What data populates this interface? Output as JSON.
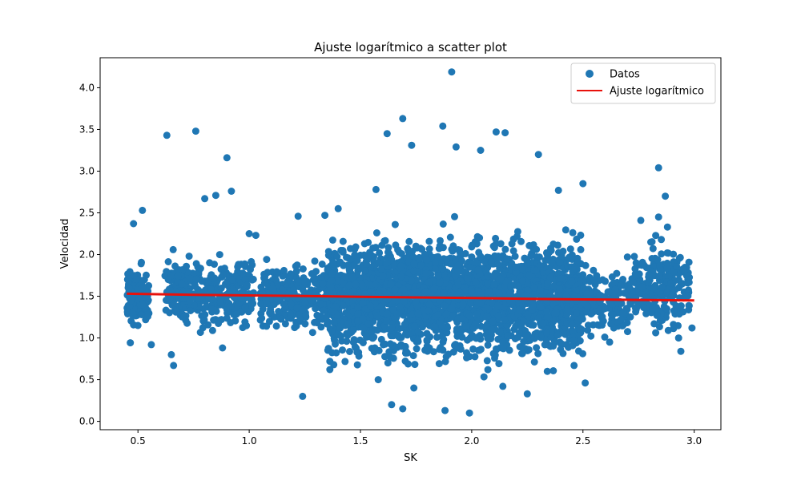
{
  "chart_data": {
    "type": "scatter",
    "title": "Ajuste logarítmico a scatter plot",
    "xlabel": "SK",
    "ylabel": "Velocidad",
    "xlim": [
      0.33,
      3.12
    ],
    "ylim": [
      -0.1,
      4.36
    ],
    "xticks": [
      0.5,
      1.0,
      1.5,
      2.0,
      2.5,
      3.0
    ],
    "xtick_labels": [
      "0.5",
      "1.0",
      "1.5",
      "2.0",
      "2.5",
      "3.0"
    ],
    "yticks": [
      0.0,
      0.5,
      1.0,
      1.5,
      2.0,
      2.5,
      3.0,
      3.5,
      4.0
    ],
    "ytick_labels": [
      "0.0",
      "0.5",
      "1.0",
      "1.5",
      "2.0",
      "2.5",
      "3.0",
      "3.5",
      "4.0"
    ],
    "grid": false,
    "legend": {
      "placement": "top-right",
      "entries": [
        {
          "label": "Datos",
          "type": "marker"
        },
        {
          "label": "Ajuste logarítmico",
          "type": "line"
        }
      ]
    },
    "series": [
      {
        "name": "Datos",
        "kind": "scatter",
        "color": "#1f77b4",
        "points": [
          [
            1.91,
            4.19
          ],
          [
            0.63,
            3.43
          ],
          [
            0.76,
            3.48
          ],
          [
            1.69,
            3.63
          ],
          [
            1.87,
            3.54
          ],
          [
            1.62,
            3.45
          ],
          [
            0.9,
            3.16
          ],
          [
            2.11,
            3.47
          ],
          [
            2.15,
            3.46
          ],
          [
            1.73,
            3.31
          ],
          [
            1.93,
            3.29
          ],
          [
            2.04,
            3.25
          ],
          [
            2.3,
            3.2
          ],
          [
            2.84,
            3.04
          ],
          [
            0.92,
            2.76
          ],
          [
            0.8,
            2.67
          ],
          [
            0.85,
            2.71
          ],
          [
            0.52,
            2.53
          ],
          [
            1.22,
            2.46
          ],
          [
            0.48,
            2.37
          ],
          [
            1.24,
            0.3
          ],
          [
            1.69,
            0.15
          ],
          [
            1.88,
            0.13
          ],
          [
            1.99,
            0.1
          ],
          [
            2.25,
            0.33
          ],
          [
            2.51,
            0.46
          ],
          [
            0.66,
            0.67
          ],
          [
            0.65,
            0.8
          ],
          [
            2.94,
            0.84
          ],
          [
            2.99,
            1.12
          ],
          [
            2.97,
            1.66
          ],
          [
            0.46,
            1.6
          ],
          [
            2.62,
            0.95
          ],
          [
            2.82,
            1.17
          ],
          [
            2.76,
            2.41
          ],
          [
            2.87,
            2.7
          ],
          [
            1.57,
            2.78
          ],
          [
            1.34,
            2.47
          ],
          [
            1.4,
            2.55
          ],
          [
            2.5,
            2.85
          ],
          [
            2.39,
            2.77
          ],
          [
            1.03,
            2.23
          ],
          [
            1.0,
            2.25
          ],
          [
            0.73,
            1.98
          ],
          [
            0.52,
            1.6
          ],
          [
            0.5,
            1.15
          ],
          [
            0.56,
            0.92
          ],
          [
            0.88,
            0.88
          ],
          [
            1.38,
            0.68
          ],
          [
            1.58,
            0.5
          ],
          [
            1.64,
            0.2
          ],
          [
            1.74,
            0.4
          ],
          [
            2.14,
            0.42
          ],
          [
            2.34,
            0.6
          ],
          [
            2.46,
            0.67
          ],
          [
            2.7,
            1.97
          ],
          [
            2.9,
            1.5
          ],
          [
            2.93,
            1.0
          ],
          [
            2.84,
            2.45
          ],
          [
            2.88,
            2.33
          ]
        ],
        "clusters": [
          {
            "x_range": [
              1.35,
              2.5
            ],
            "y_mean": 1.5,
            "y_spread": 0.55,
            "count": 2600
          },
          {
            "x_range": [
              1.05,
              1.4
            ],
            "y_mean": 1.5,
            "y_spread": 0.3,
            "count": 320
          },
          {
            "x_range": [
              0.62,
              1.02
            ],
            "y_mean": 1.55,
            "y_spread": 0.32,
            "count": 340
          },
          {
            "x_range": [
              0.45,
              0.55
            ],
            "y_mean": 1.5,
            "y_spread": 0.32,
            "count": 120
          },
          {
            "x_range": [
              2.5,
              2.72
            ],
            "y_mean": 1.45,
            "y_spread": 0.3,
            "count": 160
          },
          {
            "x_range": [
              2.72,
              2.98
            ],
            "y_mean": 1.6,
            "y_spread": 0.38,
            "count": 220
          }
        ]
      },
      {
        "name": "Ajuste logarítmico",
        "kind": "line",
        "color": "#e8120c",
        "x": [
          0.45,
          0.75,
          1.0,
          1.25,
          1.5,
          1.75,
          2.0,
          2.25,
          2.5,
          2.75,
          3.0
        ],
        "y": [
          1.53,
          1.518,
          1.51,
          1.502,
          1.494,
          1.486,
          1.478,
          1.47,
          1.462,
          1.456,
          1.45
        ]
      }
    ]
  }
}
